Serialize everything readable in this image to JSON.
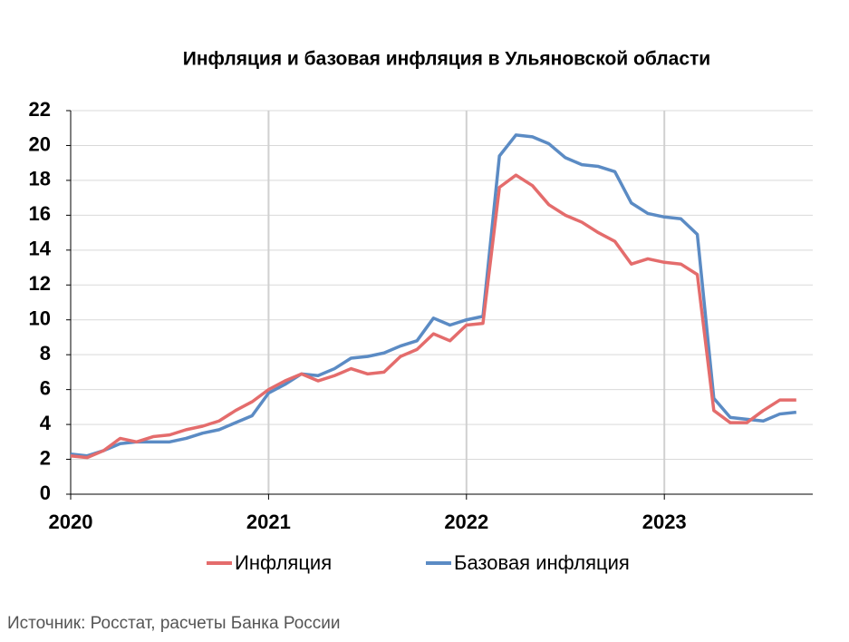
{
  "chart_data": {
    "type": "line",
    "title": "Инфляция и базовая инфляция в Ульяновской области",
    "source": "Источник: Росстат, расчеты Банка России",
    "categories": [
      "2020",
      null,
      null,
      null,
      null,
      null,
      null,
      null,
      null,
      null,
      null,
      null,
      "2021",
      null,
      null,
      null,
      null,
      null,
      null,
      null,
      null,
      null,
      null,
      null,
      "2022",
      null,
      null,
      null,
      null,
      null,
      null,
      null,
      null,
      null,
      null,
      null,
      "2023",
      null,
      null,
      null,
      null,
      null,
      null,
      null,
      null
    ],
    "series": [
      {
        "name": "Инфляция",
        "color": "#e46c6c",
        "values": [
          2.2,
          2.1,
          2.5,
          3.2,
          3.0,
          3.3,
          3.4,
          3.7,
          3.9,
          4.2,
          4.8,
          5.3,
          6.0,
          6.5,
          6.9,
          6.5,
          6.8,
          7.2,
          6.9,
          7.0,
          7.9,
          8.3,
          9.2,
          8.8,
          9.7,
          9.8,
          17.6,
          18.3,
          17.7,
          16.6,
          16.0,
          15.6,
          15.0,
          14.5,
          13.2,
          13.5,
          13.3,
          13.2,
          12.6,
          4.8,
          4.1,
          4.1,
          4.8,
          5.4,
          5.4
        ]
      },
      {
        "name": "Базовая инфляция",
        "color": "#5b8bc4",
        "values": [
          2.3,
          2.2,
          2.5,
          2.9,
          3.0,
          3.0,
          3.0,
          3.2,
          3.5,
          3.7,
          4.1,
          4.5,
          5.8,
          6.3,
          6.9,
          6.8,
          7.2,
          7.8,
          7.9,
          8.1,
          8.5,
          8.8,
          10.1,
          9.7,
          10.0,
          10.2,
          19.4,
          20.6,
          20.5,
          20.1,
          19.3,
          18.9,
          18.8,
          18.5,
          16.7,
          16.1,
          15.9,
          15.8,
          14.9,
          5.5,
          4.4,
          4.3,
          4.2,
          4.6,
          4.7
        ]
      }
    ],
    "ylim": [
      0,
      22
    ],
    "yticks": [
      0,
      2,
      4,
      6,
      8,
      10,
      12,
      14,
      16,
      18,
      20,
      22
    ],
    "grid": true
  }
}
